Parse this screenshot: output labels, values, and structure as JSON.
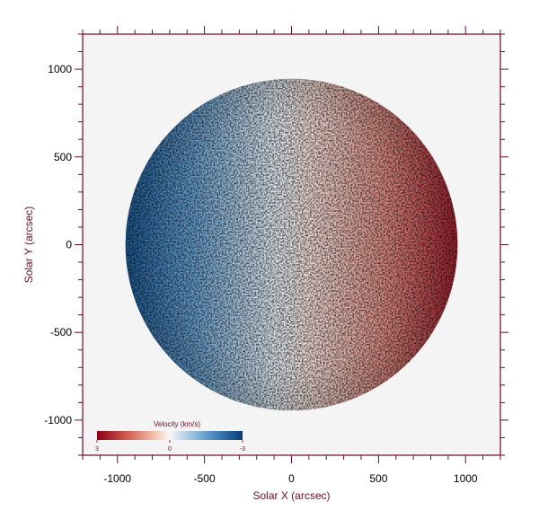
{
  "chart_data": {
    "type": "heatmap",
    "title": "",
    "xlabel": "Solar X (arcsec)",
    "ylabel": "Solar Y (arcsec)",
    "xlim": [
      -1200,
      1200
    ],
    "ylim": [
      -1200,
      1200
    ],
    "x_ticks": [
      -1000,
      -500,
      0,
      500,
      1000
    ],
    "y_ticks": [
      -1000,
      -500,
      0,
      500,
      1000
    ],
    "x_tick_labels": [
      "-1000",
      "-500",
      "0",
      "500",
      "1000"
    ],
    "y_tick_labels": [
      "1000",
      "500",
      "0",
      "-500",
      "-1000"
    ],
    "minor_tick_step": 100,
    "disk": {
      "center_x": 0,
      "center_y": 0,
      "radius": 950
    },
    "velocity_gradient": {
      "left_limb": -3,
      "right_limb": 3,
      "units": "km/s"
    },
    "colorbar": {
      "title": "Velocity (km/s)",
      "min": -3,
      "max": 3,
      "tick_labels": [
        "3",
        "0",
        "-3"
      ],
      "colormap": "RdBu"
    },
    "colors": {
      "frame": "#6b0a2a",
      "plot_background": "#f4f4f4",
      "red": "#8b0016",
      "white": "#f7f7f7",
      "blue": "#063c78"
    },
    "grid": false
  }
}
